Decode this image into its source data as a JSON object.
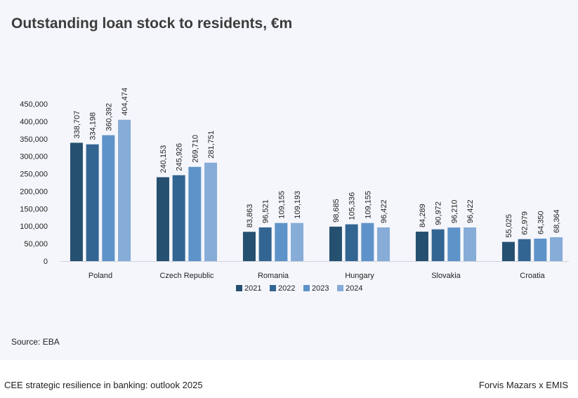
{
  "title": "Outstanding loan stock to residents, €m",
  "source": "Source: EBA",
  "footer": {
    "left": "CEE strategic resilience in banking: outlook 2025",
    "right": "Forvis Mazars x EMIS"
  },
  "chart_data": {
    "type": "bar",
    "title": "Outstanding loan stock to residents, €m",
    "categories": [
      "Poland",
      "Czech Republic",
      "Romania",
      "Hungary",
      "Slovakia",
      "Croatia"
    ],
    "series": [
      {
        "name": "2021",
        "color": "#26506f",
        "values": [
          338707,
          240153,
          83863,
          98685,
          84289,
          55025
        ]
      },
      {
        "name": "2022",
        "color": "#336593",
        "values": [
          334198,
          245926,
          96521,
          105336,
          90972,
          62979
        ]
      },
      {
        "name": "2023",
        "color": "#5e93c9",
        "values": [
          360392,
          269710,
          109155,
          109155,
          96210,
          64350
        ]
      },
      {
        "name": "2024",
        "color": "#86acd7",
        "values": [
          404474,
          281751,
          109193,
          96422,
          96422,
          68364
        ]
      }
    ],
    "ylim": [
      0,
      450000
    ],
    "yticks": [
      "0",
      "50,000",
      "100,000",
      "150,000",
      "200,000",
      "250,000",
      "300,000",
      "350,000",
      "400,000",
      "450,000"
    ],
    "grid": false,
    "legend": "bottom",
    "data_labels": "rotated"
  }
}
